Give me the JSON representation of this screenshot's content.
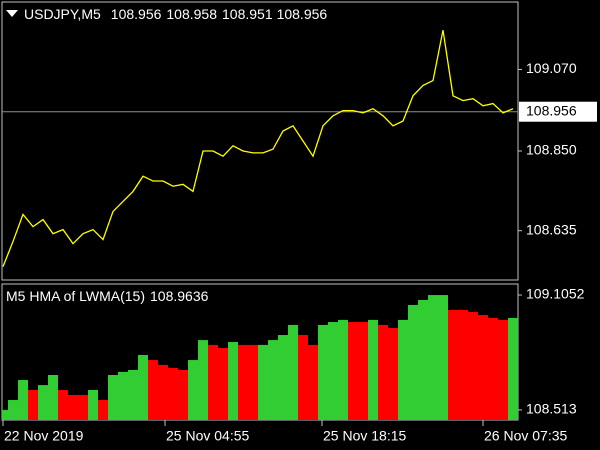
{
  "chart_data": [
    {
      "type": "line",
      "symbol": "USDJPY,M5",
      "ohlc": [
        108.956,
        108.958,
        108.951,
        108.956
      ],
      "color": "#ffff00",
      "values": [
        108.538,
        108.606,
        108.679,
        108.646,
        108.665,
        108.627,
        108.638,
        108.6,
        108.627,
        108.638,
        108.611,
        108.687,
        108.714,
        108.741,
        108.782,
        108.769,
        108.769,
        108.755,
        108.76,
        108.741,
        108.85,
        108.85,
        108.836,
        108.864,
        108.85,
        108.845,
        108.845,
        108.855,
        108.904,
        108.918,
        108.877,
        108.836,
        108.918,
        108.945,
        108.959,
        108.959,
        108.953,
        108.964,
        108.945,
        108.918,
        108.931,
        108.999,
        109.027,
        109.04,
        109.176,
        108.999,
        108.986,
        108.991,
        108.972,
        108.978,
        108.953,
        108.964
      ],
      "last_price": 108.956,
      "xlim": [
        0,
        51.5
      ],
      "ylim": [
        108.502,
        109.252
      ],
      "yticks": [
        {
          "value": 109.07,
          "label": "109.070"
        },
        {
          "value": 108.85,
          "label": "108.850"
        },
        108.635
      ],
      "xticks": [
        {
          "value": 0,
          "label": "22 Nov 2019"
        },
        {
          "value": 16.2,
          "label": "25 Nov 04:55"
        },
        {
          "value": 31.9,
          "label": "25 Nov 18:15"
        },
        {
          "value": 48.0,
          "label": "26 Nov 07:35"
        }
      ]
    },
    {
      "type": "bar",
      "name": "M5 HMA of LWMA(15)",
      "last_value": 108.9636,
      "values": [
        108.513,
        108.564,
        108.667,
        108.616,
        108.641,
        108.693,
        108.616,
        108.59,
        108.59,
        108.616,
        108.564,
        108.693,
        108.709,
        108.719,
        108.796,
        108.77,
        108.745,
        108.729,
        108.719,
        108.77,
        108.873,
        108.848,
        108.832,
        108.863,
        108.848,
        108.848,
        108.848,
        108.873,
        108.899,
        108.951,
        108.899,
        108.848,
        108.951,
        108.966,
        108.977,
        108.966,
        108.966,
        108.977,
        108.951,
        108.935,
        108.977,
        109.054,
        109.08,
        109.105,
        109.105,
        109.028,
        109.028,
        109.018,
        109.002,
        108.987,
        108.977,
        108.987
      ],
      "colors": [
        "#32cd32",
        "#32cd32",
        "#32cd32",
        "#ff0000",
        "#32cd32",
        "#32cd32",
        "#ff0000",
        "#ff0000",
        "#ff0000",
        "#32cd32",
        "#ff0000",
        "#32cd32",
        "#32cd32",
        "#32cd32",
        "#32cd32",
        "#ff0000",
        "#ff0000",
        "#ff0000",
        "#ff0000",
        "#32cd32",
        "#32cd32",
        "#ff0000",
        "#ff0000",
        "#32cd32",
        "#ff0000",
        "#ff0000",
        "#32cd32",
        "#32cd32",
        "#32cd32",
        "#32cd32",
        "#ff0000",
        "#ff0000",
        "#32cd32",
        "#32cd32",
        "#32cd32",
        "#ff0000",
        "#ff0000",
        "#32cd32",
        "#ff0000",
        "#ff0000",
        "#32cd32",
        "#32cd32",
        "#32cd32",
        "#32cd32",
        "#32cd32",
        "#ff0000",
        "#ff0000",
        "#ff0000",
        "#ff0000",
        "#ff0000",
        "#ff0000",
        "#32cd32"
      ],
      "xlim": [
        0,
        51.5
      ],
      "ylim": [
        108.461,
        109.162
      ],
      "yticks": [
        109.1052,
        108.513
      ]
    }
  ]
}
